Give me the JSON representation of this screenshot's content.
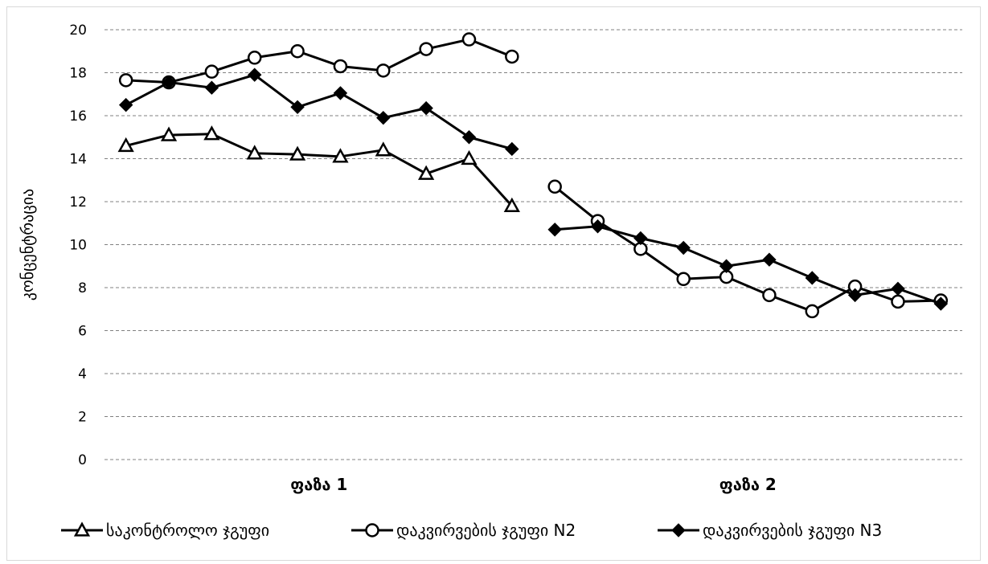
{
  "chart_data": {
    "type": "line",
    "ylabel": "კონცენტრაცია",
    "ylim": [
      0,
      20
    ],
    "yticks": [
      0,
      2,
      4,
      6,
      8,
      10,
      12,
      14,
      16,
      18,
      20
    ],
    "grid": true,
    "legend_position": "bottom",
    "categories": [
      "ფაზა 1",
      "ფაზა 2"
    ],
    "points_per_category": 10,
    "series": [
      {
        "name": "საკონტროლო ჯგუფი",
        "marker": "triangle-open",
        "values": [
          [
            14.6,
            15.1,
            15.15,
            14.25,
            14.2,
            14.1,
            14.4,
            13.3,
            14.0,
            11.8
          ],
          []
        ]
      },
      {
        "name": "დაკვირვების ჯგუფი N2",
        "marker": "circle-open",
        "values": [
          [
            17.65,
            17.55,
            18.05,
            18.7,
            19.0,
            18.3,
            18.1,
            19.1,
            19.55,
            18.75
          ],
          [
            12.7,
            11.1,
            9.8,
            8.4,
            8.5,
            7.65,
            6.9,
            8.05,
            7.35,
            7.4
          ]
        ]
      },
      {
        "name": "დაკვირვების ჯგუფი N3",
        "marker": "diamond-filled",
        "values": [
          [
            16.5,
            17.55,
            17.3,
            17.9,
            16.4,
            17.05,
            15.9,
            16.35,
            15.0,
            14.45
          ],
          [
            10.7,
            10.85,
            10.3,
            9.85,
            9.0,
            9.3,
            8.45,
            7.65,
            7.95,
            7.25
          ]
        ]
      }
    ]
  }
}
